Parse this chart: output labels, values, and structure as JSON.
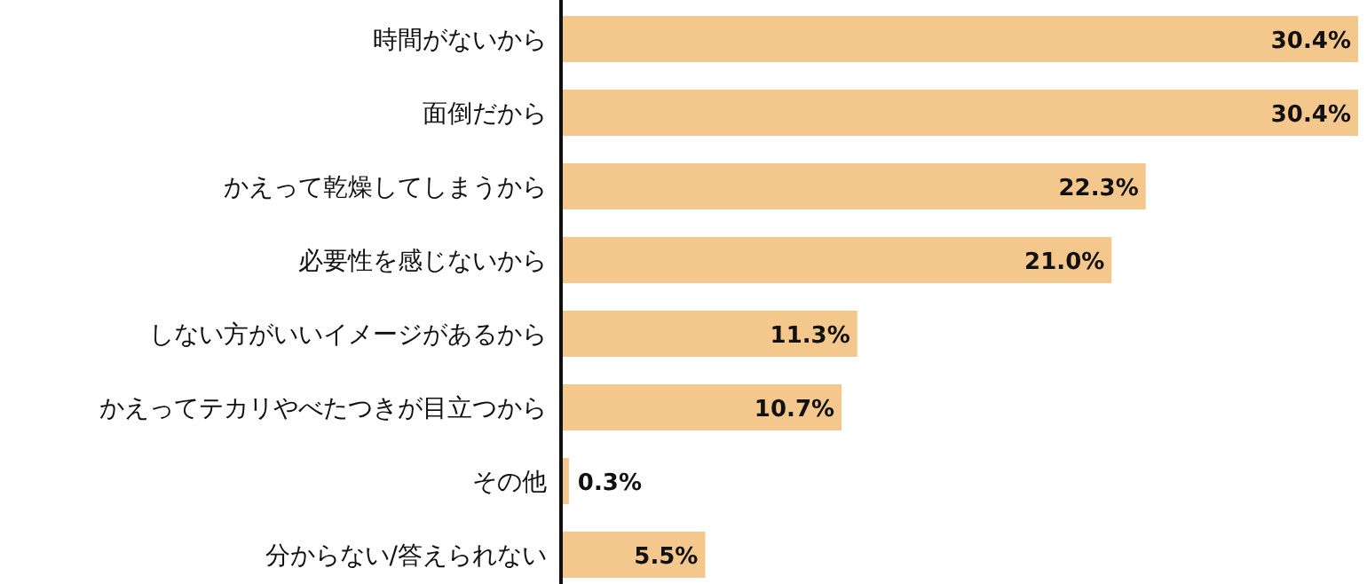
{
  "chart_data": {
    "type": "bar",
    "orientation": "horizontal",
    "categories": [
      "時間がないから",
      "面倒だから",
      "かえって乾燥してしまうから",
      "必要性を感じないから",
      "しない方がいいイメージがあるから",
      "かえってテカリやべたつきが目立つから",
      "その他",
      "分からない/答えられない"
    ],
    "series": [
      {
        "color": "#f4c78c",
        "values": [
          30.4,
          30.4,
          22.3,
          21.0,
          11.3,
          10.7,
          0.3,
          5.5
        ],
        "value_labels": [
          "30.4%",
          "30.4%",
          "22.3%",
          "21.0%",
          "11.3%",
          "10.7%",
          "0.3%",
          "5.5%"
        ]
      }
    ]
  }
}
